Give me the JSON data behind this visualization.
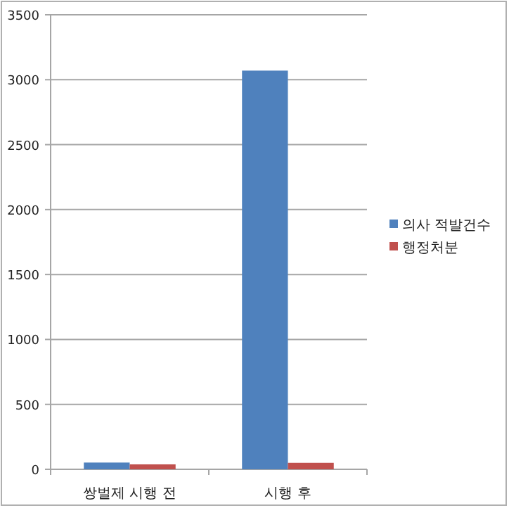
{
  "chart_data": {
    "type": "bar",
    "categories": [
      "쌍벌제 시행 전",
      "시행 후"
    ],
    "series": [
      {
        "name": "의사 적발건수",
        "color": "#4f81bd",
        "values": [
          52,
          3070
        ]
      },
      {
        "name": "행정처분",
        "color": "#c0504d",
        "values": [
          38,
          50
        ]
      }
    ],
    "ylim": [
      0,
      3500
    ],
    "yticks": [
      0,
      500,
      1000,
      1500,
      2000,
      2500,
      3000,
      3500
    ],
    "grid": "y",
    "legend": "right"
  }
}
